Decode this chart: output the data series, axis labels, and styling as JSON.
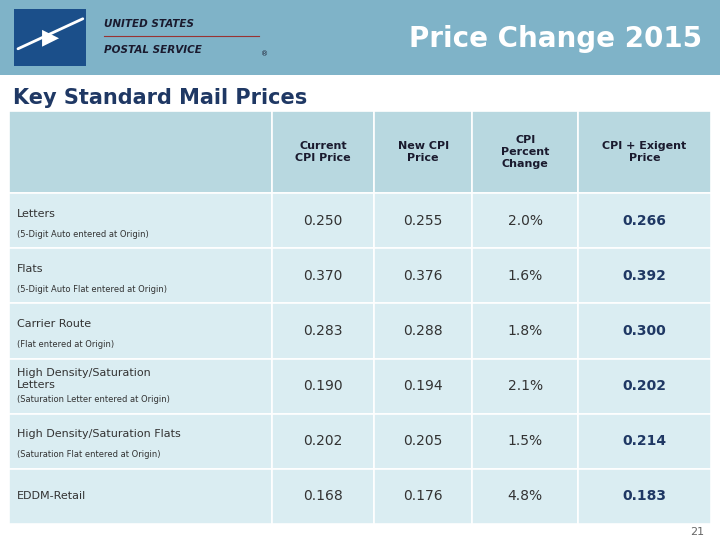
{
  "title": "Price Change 2015",
  "subtitle": "Key Standard Mail Prices",
  "header_bg": "#b8d8e0",
  "header_text_color": "#1a1a2e",
  "row_bg": "#daedf2",
  "row_bg_white": "#ffffff",
  "top_bar_color": "#7fb3c8",
  "red_line_color": "#aa2222",
  "title_color": "#ffffff",
  "subtitle_color": "#1f3864",
  "col_headers": [
    "Current\nCPI Price",
    "New CPI\nPrice",
    "CPI\nPercent\nChange",
    "CPI + Exigent\nPrice"
  ],
  "row_labels_main": [
    "Letters",
    "Flats",
    "Carrier Route",
    "High Density/Saturation\nLetters",
    "High Density/Saturation Flats",
    "EDDM-Retail"
  ],
  "row_labels_sub": [
    "(5-Digit Auto entered at Origin)",
    "(5-Digit Auto Flat entered at Origin)",
    "(Flat entered at Origin)",
    "(Saturation Letter entered at Origin)",
    "(Saturation Flat entered at Origin)",
    ""
  ],
  "data": [
    [
      "0.250",
      "0.255",
      "2.0%",
      "0.266"
    ],
    [
      "0.370",
      "0.376",
      "1.6%",
      "0.392"
    ],
    [
      "0.283",
      "0.288",
      "1.8%",
      "0.300"
    ],
    [
      "0.190",
      "0.194",
      "2.1%",
      "0.202"
    ],
    [
      "0.202",
      "0.205",
      "1.5%",
      "0.214"
    ],
    [
      "0.168",
      "0.176",
      "4.8%",
      "0.183"
    ]
  ],
  "last_col_color": "#1f3864",
  "normal_text_color": "#333333",
  "page_num": "21"
}
